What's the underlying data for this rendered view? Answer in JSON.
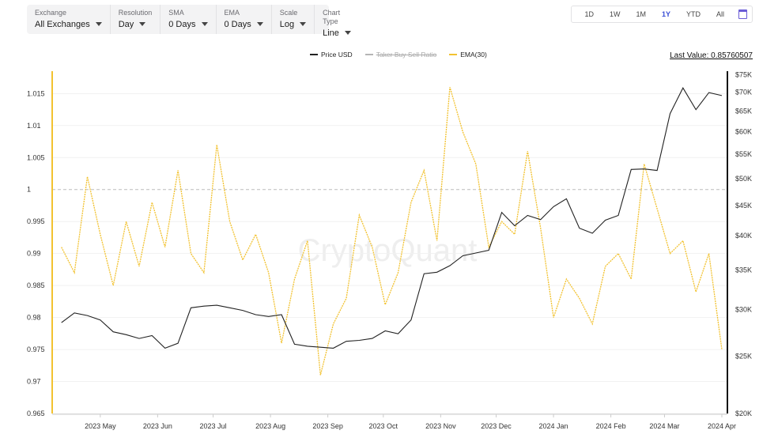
{
  "controls": [
    {
      "label": "Exchange",
      "value": "All Exchanges"
    },
    {
      "label": "Resolution",
      "value": "Day"
    },
    {
      "label": "SMA",
      "value": "0 Days"
    },
    {
      "label": "EMA",
      "value": "0 Days"
    },
    {
      "label": "Scale",
      "value": "Log"
    },
    {
      "label": "Chart Type",
      "value": "Line"
    }
  ],
  "ranges": [
    "1D",
    "1W",
    "1M",
    "1Y",
    "YTD",
    "All"
  ],
  "active_range": "1Y",
  "legend": [
    {
      "name": "Price USD",
      "color": "#222222",
      "hidden": false
    },
    {
      "name": "Taker Buy Sell Ratio",
      "color": "#b5b5b5",
      "hidden": true
    },
    {
      "name": "EMA(30)",
      "color": "#f2c230",
      "hidden": false
    }
  ],
  "last_value": "Last Value: 0.85760507",
  "watermark": "CryptoQuant",
  "colors": {
    "price": "#222222",
    "ema": "#f2c230",
    "axis": "#f2c230",
    "right_axis": "#111111"
  },
  "chart_data": {
    "type": "line",
    "x_ticks": [
      "2023 May",
      "2023 Jun",
      "2023 Jul",
      "2023 Aug",
      "2023 Sep",
      "2023 Oct",
      "2023 Nov",
      "2023 Dec",
      "2024 Jan",
      "2024 Feb",
      "2024 Mar",
      "2024 Apr"
    ],
    "left_axis": {
      "ticks": [
        "1.015",
        "1.01",
        "1.005",
        "1",
        "0.995",
        "0.99",
        "0.985",
        "0.98",
        "0.975",
        "0.97",
        "0.965"
      ],
      "ylim": [
        0.965,
        1.0185
      ],
      "reference_line": 1
    },
    "right_axis": {
      "scale": "log",
      "ticks": [
        "$75K",
        "$70K",
        "$65K",
        "$60K",
        "$55K",
        "$50K",
        "$45K",
        "$40K",
        "$35K",
        "$30K",
        "$25K",
        "$20K"
      ],
      "ylim": [
        20000,
        76000
      ]
    },
    "series": [
      {
        "name": "Price USD",
        "axis": "right",
        "dates": [
          "2023-04-10",
          "2023-04-17",
          "2023-04-24",
          "2023-05-01",
          "2023-05-08",
          "2023-05-15",
          "2023-05-22",
          "2023-05-29",
          "2023-06-05",
          "2023-06-12",
          "2023-06-19",
          "2023-06-26",
          "2023-07-03",
          "2023-07-10",
          "2023-07-17",
          "2023-07-24",
          "2023-07-31",
          "2023-08-07",
          "2023-08-14",
          "2023-08-21",
          "2023-08-28",
          "2023-09-04",
          "2023-09-11",
          "2023-09-18",
          "2023-09-25",
          "2023-10-02",
          "2023-10-09",
          "2023-10-16",
          "2023-10-23",
          "2023-10-30",
          "2023-11-06",
          "2023-11-13",
          "2023-11-20",
          "2023-11-27",
          "2023-12-04",
          "2023-12-11",
          "2023-12-18",
          "2023-12-25",
          "2024-01-01",
          "2024-01-08",
          "2024-01-15",
          "2024-01-22",
          "2024-01-29",
          "2024-02-05",
          "2024-02-12",
          "2024-02-19",
          "2024-02-26",
          "2024-03-04",
          "2024-03-11",
          "2024-03-18",
          "2024-03-25",
          "2024-04-01"
        ],
        "values": [
          28500,
          29600,
          29300,
          28800,
          27500,
          27200,
          26800,
          27100,
          25800,
          26300,
          30200,
          30400,
          30500,
          30200,
          29900,
          29400,
          29200,
          29400,
          26200,
          26000,
          25900,
          25800,
          26500,
          26600,
          26800,
          27600,
          27300,
          28800,
          34500,
          34700,
          35600,
          37000,
          37400,
          37800,
          43800,
          41600,
          43300,
          42600,
          44800,
          46200,
          41200,
          40400,
          42500,
          43300,
          51800,
          51900,
          51600,
          64400,
          71200,
          65400,
          69900,
          69100
        ]
      },
      {
        "name": "EMA(30)",
        "axis": "left",
        "dates": [
          "2023-04-10",
          "2023-04-17",
          "2023-04-24",
          "2023-05-01",
          "2023-05-08",
          "2023-05-15",
          "2023-05-22",
          "2023-05-29",
          "2023-06-05",
          "2023-06-12",
          "2023-06-19",
          "2023-06-26",
          "2023-07-03",
          "2023-07-10",
          "2023-07-17",
          "2023-07-24",
          "2023-07-31",
          "2023-08-07",
          "2023-08-14",
          "2023-08-21",
          "2023-08-28",
          "2023-09-04",
          "2023-09-11",
          "2023-09-18",
          "2023-09-25",
          "2023-10-02",
          "2023-10-09",
          "2023-10-16",
          "2023-10-23",
          "2023-10-30",
          "2023-11-06",
          "2023-11-13",
          "2023-11-20",
          "2023-11-27",
          "2023-12-04",
          "2023-12-11",
          "2023-12-18",
          "2023-12-25",
          "2024-01-01",
          "2024-01-08",
          "2024-01-15",
          "2024-01-22",
          "2024-01-29",
          "2024-02-05",
          "2024-02-12",
          "2024-02-19",
          "2024-02-26",
          "2024-03-04",
          "2024-03-11",
          "2024-03-18",
          "2024-03-25",
          "2024-04-01"
        ],
        "values": [
          0.991,
          0.987,
          1.002,
          0.993,
          0.985,
          0.995,
          0.988,
          0.998,
          0.991,
          1.003,
          0.99,
          0.987,
          1.007,
          0.995,
          0.989,
          0.993,
          0.987,
          0.976,
          0.986,
          0.992,
          0.971,
          0.979,
          0.983,
          0.996,
          0.991,
          0.982,
          0.987,
          0.998,
          1.003,
          0.992,
          1.016,
          1.009,
          1.004,
          0.991,
          0.995,
          0.993,
          1.006,
          0.994,
          0.98,
          0.986,
          0.983,
          0.979,
          0.988,
          0.99,
          0.986,
          1.004,
          0.997,
          0.99,
          0.992,
          0.984,
          0.99,
          0.975
        ]
      }
    ]
  }
}
